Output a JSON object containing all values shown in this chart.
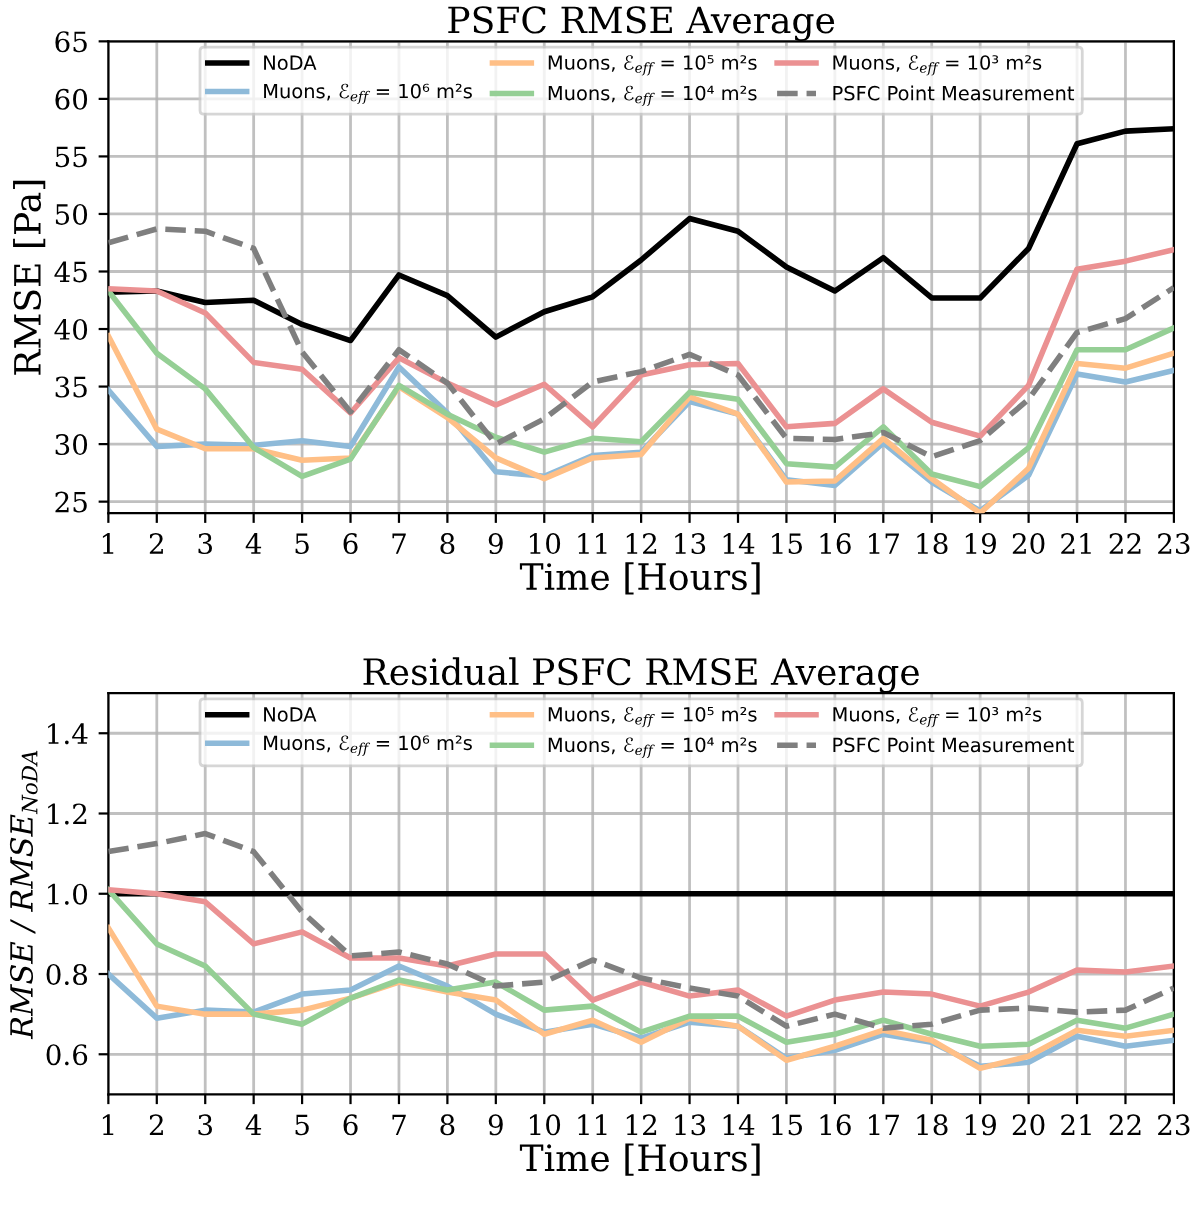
{
  "chart_data": [
    {
      "type": "line",
      "title": "PSFC RMSE Average",
      "xlabel": "Time [Hours]",
      "ylabel": "RMSE [Pa]",
      "x": [
        1,
        2,
        3,
        4,
        5,
        6,
        7,
        8,
        9,
        10,
        11,
        12,
        13,
        14,
        15,
        16,
        17,
        18,
        19,
        20,
        21,
        22,
        23
      ],
      "xlim": [
        1,
        23
      ],
      "xticks": [
        1,
        2,
        3,
        4,
        5,
        6,
        7,
        8,
        9,
        10,
        11,
        12,
        13,
        14,
        15,
        16,
        17,
        18,
        19,
        20,
        21,
        22,
        23
      ],
      "ylim": [
        24,
        65
      ],
      "yticks": [
        25,
        30,
        35,
        40,
        45,
        50,
        55,
        60,
        65
      ],
      "grid": true,
      "legend": "top",
      "marker": "none",
      "series": [
        {
          "name": "NoDA",
          "color": "#000000",
          "line_style": "solid",
          "values": [
            43.2,
            43.3,
            42.3,
            42.5,
            40.4,
            39.0,
            44.7,
            42.9,
            39.3,
            41.5,
            42.8,
            46.0,
            49.6,
            48.5,
            45.4,
            43.3,
            46.2,
            42.7,
            42.7,
            47.0,
            56.1,
            57.2,
            57.4
          ]
        },
        {
          "name": "Muons, ℰ$_{eff}$ = 10⁶ m²s",
          "color": "#8ebad9",
          "line_style": "solid",
          "values": [
            34.7,
            29.8,
            30.0,
            29.9,
            30.3,
            29.8,
            36.7,
            32.7,
            27.6,
            27.2,
            29.0,
            29.3,
            33.7,
            32.6,
            26.9,
            26.4,
            30.1,
            26.7,
            24.2,
            27.3,
            36.1,
            35.4,
            36.4
          ]
        },
        {
          "name": "Muons, ℰ$_{eff}$ = 10⁵ m²s",
          "color": "#ffbf86",
          "line_style": "solid",
          "values": [
            39.4,
            31.3,
            29.6,
            29.6,
            28.6,
            28.8,
            35.0,
            32.3,
            28.8,
            27.0,
            28.8,
            29.1,
            34.1,
            32.6,
            26.7,
            26.8,
            30.5,
            27.0,
            24.0,
            27.9,
            37.0,
            36.6,
            37.9
          ]
        },
        {
          "name": "Muons, ℰ$_{eff}$ = 10⁴ m²s",
          "color": "#95cf95",
          "line_style": "solid",
          "values": [
            43.3,
            37.9,
            34.8,
            29.7,
            27.2,
            28.7,
            35.1,
            32.6,
            30.6,
            29.3,
            30.5,
            30.2,
            34.5,
            33.9,
            28.3,
            28.0,
            31.5,
            27.4,
            26.3,
            29.7,
            38.2,
            38.2,
            40.1
          ]
        },
        {
          "name": "Muons, ℰ$_{eff}$ = 10³ m²s",
          "color": "#eb9192",
          "line_style": "solid",
          "values": [
            43.5,
            43.3,
            41.4,
            37.1,
            36.5,
            32.7,
            37.5,
            35.3,
            33.4,
            35.2,
            31.5,
            36.0,
            36.9,
            37.0,
            31.5,
            31.8,
            34.8,
            31.9,
            30.7,
            35.1,
            45.2,
            45.9,
            46.9
          ]
        },
        {
          "name": "PSFC Point Measurement",
          "color": "#7f7f7f",
          "line_style": "dashed",
          "values": [
            47.5,
            48.7,
            48.5,
            47.0,
            38.0,
            32.8,
            38.2,
            35.3,
            30.0,
            32.2,
            35.4,
            36.3,
            37.8,
            36.0,
            30.5,
            30.4,
            31.0,
            28.9,
            30.3,
            33.9,
            39.7,
            40.9,
            43.6
          ]
        }
      ]
    },
    {
      "type": "line",
      "title": "Residual PSFC RMSE Average",
      "xlabel": "Time [Hours]",
      "ylabel": "RMSE / RMSE$_{NoDA}$",
      "x": [
        1,
        2,
        3,
        4,
        5,
        6,
        7,
        8,
        9,
        10,
        11,
        12,
        13,
        14,
        15,
        16,
        17,
        18,
        19,
        20,
        21,
        22,
        23
      ],
      "xlim": [
        1,
        23
      ],
      "xticks": [
        1,
        2,
        3,
        4,
        5,
        6,
        7,
        8,
        9,
        10,
        11,
        12,
        13,
        14,
        15,
        16,
        17,
        18,
        19,
        20,
        21,
        22,
        23
      ],
      "ylim": [
        0.5,
        1.5
      ],
      "yticks": [
        0.6,
        0.8,
        {
          "value": 1.0,
          "label": "1.0"
        },
        1.2,
        1.4
      ],
      "grid": true,
      "legend": "top",
      "marker": "none",
      "series": [
        {
          "name": "NoDA",
          "color": "#000000",
          "line_style": "solid",
          "values": [
            1,
            1,
            1,
            1,
            1,
            1,
            1,
            1,
            1,
            1,
            1,
            1,
            1,
            1,
            1,
            1,
            1,
            1,
            1,
            1,
            1,
            1,
            1
          ]
        },
        {
          "name": "Muons, ℰ$_{eff}$ = 10⁶ m²s",
          "color": "#8ebad9",
          "line_style": "solid",
          "values": [
            0.8,
            0.69,
            0.71,
            0.705,
            0.75,
            0.76,
            0.82,
            0.77,
            0.7,
            0.655,
            0.675,
            0.64,
            0.68,
            0.67,
            0.59,
            0.61,
            0.65,
            0.63,
            0.57,
            0.58,
            0.645,
            0.62,
            0.635
          ]
        },
        {
          "name": "Muons, ℰ$_{eff}$ = 10⁵ m²s",
          "color": "#ffbf86",
          "line_style": "solid",
          "values": [
            0.915,
            0.72,
            0.7,
            0.7,
            0.71,
            0.74,
            0.78,
            0.755,
            0.735,
            0.65,
            0.685,
            0.63,
            0.69,
            0.67,
            0.585,
            0.62,
            0.66,
            0.635,
            0.565,
            0.595,
            0.66,
            0.645,
            0.66
          ]
        },
        {
          "name": "Muons, ℰ$_{eff}$ = 10⁴ m²s",
          "color": "#95cf95",
          "line_style": "solid",
          "values": [
            1.01,
            0.875,
            0.82,
            0.7,
            0.675,
            0.74,
            0.785,
            0.76,
            0.78,
            0.71,
            0.72,
            0.655,
            0.695,
            0.695,
            0.63,
            0.65,
            0.685,
            0.65,
            0.62,
            0.625,
            0.685,
            0.665,
            0.7
          ]
        },
        {
          "name": "Muons, ℰ$_{eff}$ = 10³ m²s",
          "color": "#eb9192",
          "line_style": "solid",
          "values": [
            1.01,
            1.0,
            0.98,
            0.875,
            0.905,
            0.84,
            0.84,
            0.82,
            0.85,
            0.85,
            0.735,
            0.78,
            0.745,
            0.76,
            0.695,
            0.735,
            0.755,
            0.75,
            0.72,
            0.755,
            0.81,
            0.805,
            0.82
          ]
        },
        {
          "name": "PSFC Point Measurement",
          "color": "#7f7f7f",
          "line_style": "dashed",
          "values": [
            1.105,
            1.125,
            1.15,
            1.105,
            0.955,
            0.845,
            0.855,
            0.825,
            0.77,
            0.78,
            0.835,
            0.79,
            0.765,
            0.745,
            0.67,
            0.7,
            0.665,
            0.675,
            0.71,
            0.715,
            0.705,
            0.71,
            0.765
          ]
        }
      ]
    }
  ]
}
